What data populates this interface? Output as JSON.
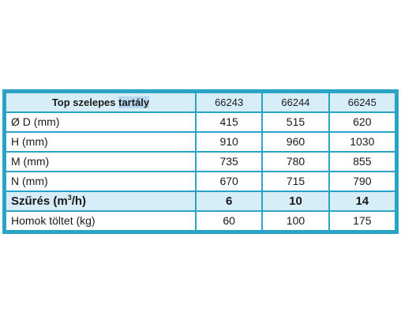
{
  "table": {
    "header": {
      "label_prefix": "Top szelepes ",
      "label_highlight": "tartály",
      "columns": [
        "66243",
        "66244",
        "66245"
      ]
    },
    "rows": [
      {
        "label": "Ø D (mm)",
        "values": [
          "415",
          "515",
          "620"
        ]
      },
      {
        "label": "H (mm)",
        "values": [
          "910",
          "960",
          "1030"
        ]
      },
      {
        "label": "M (mm)",
        "values": [
          "735",
          "780",
          "855"
        ]
      },
      {
        "label": "N (mm)",
        "values": [
          "670",
          "715",
          "790"
        ]
      }
    ],
    "filtration": {
      "label_prefix": "Szűrés (m",
      "label_sup": "3",
      "label_suffix": "/h)",
      "values": [
        "6",
        "10",
        "14"
      ]
    },
    "sand_row": {
      "label": "Homok töltet (kg)",
      "values": [
        "60",
        "100",
        "175"
      ]
    }
  },
  "colors": {
    "border": "#2ba3c4",
    "header_fill": "#d7eef8",
    "highlight": "#b6d7f2"
  }
}
